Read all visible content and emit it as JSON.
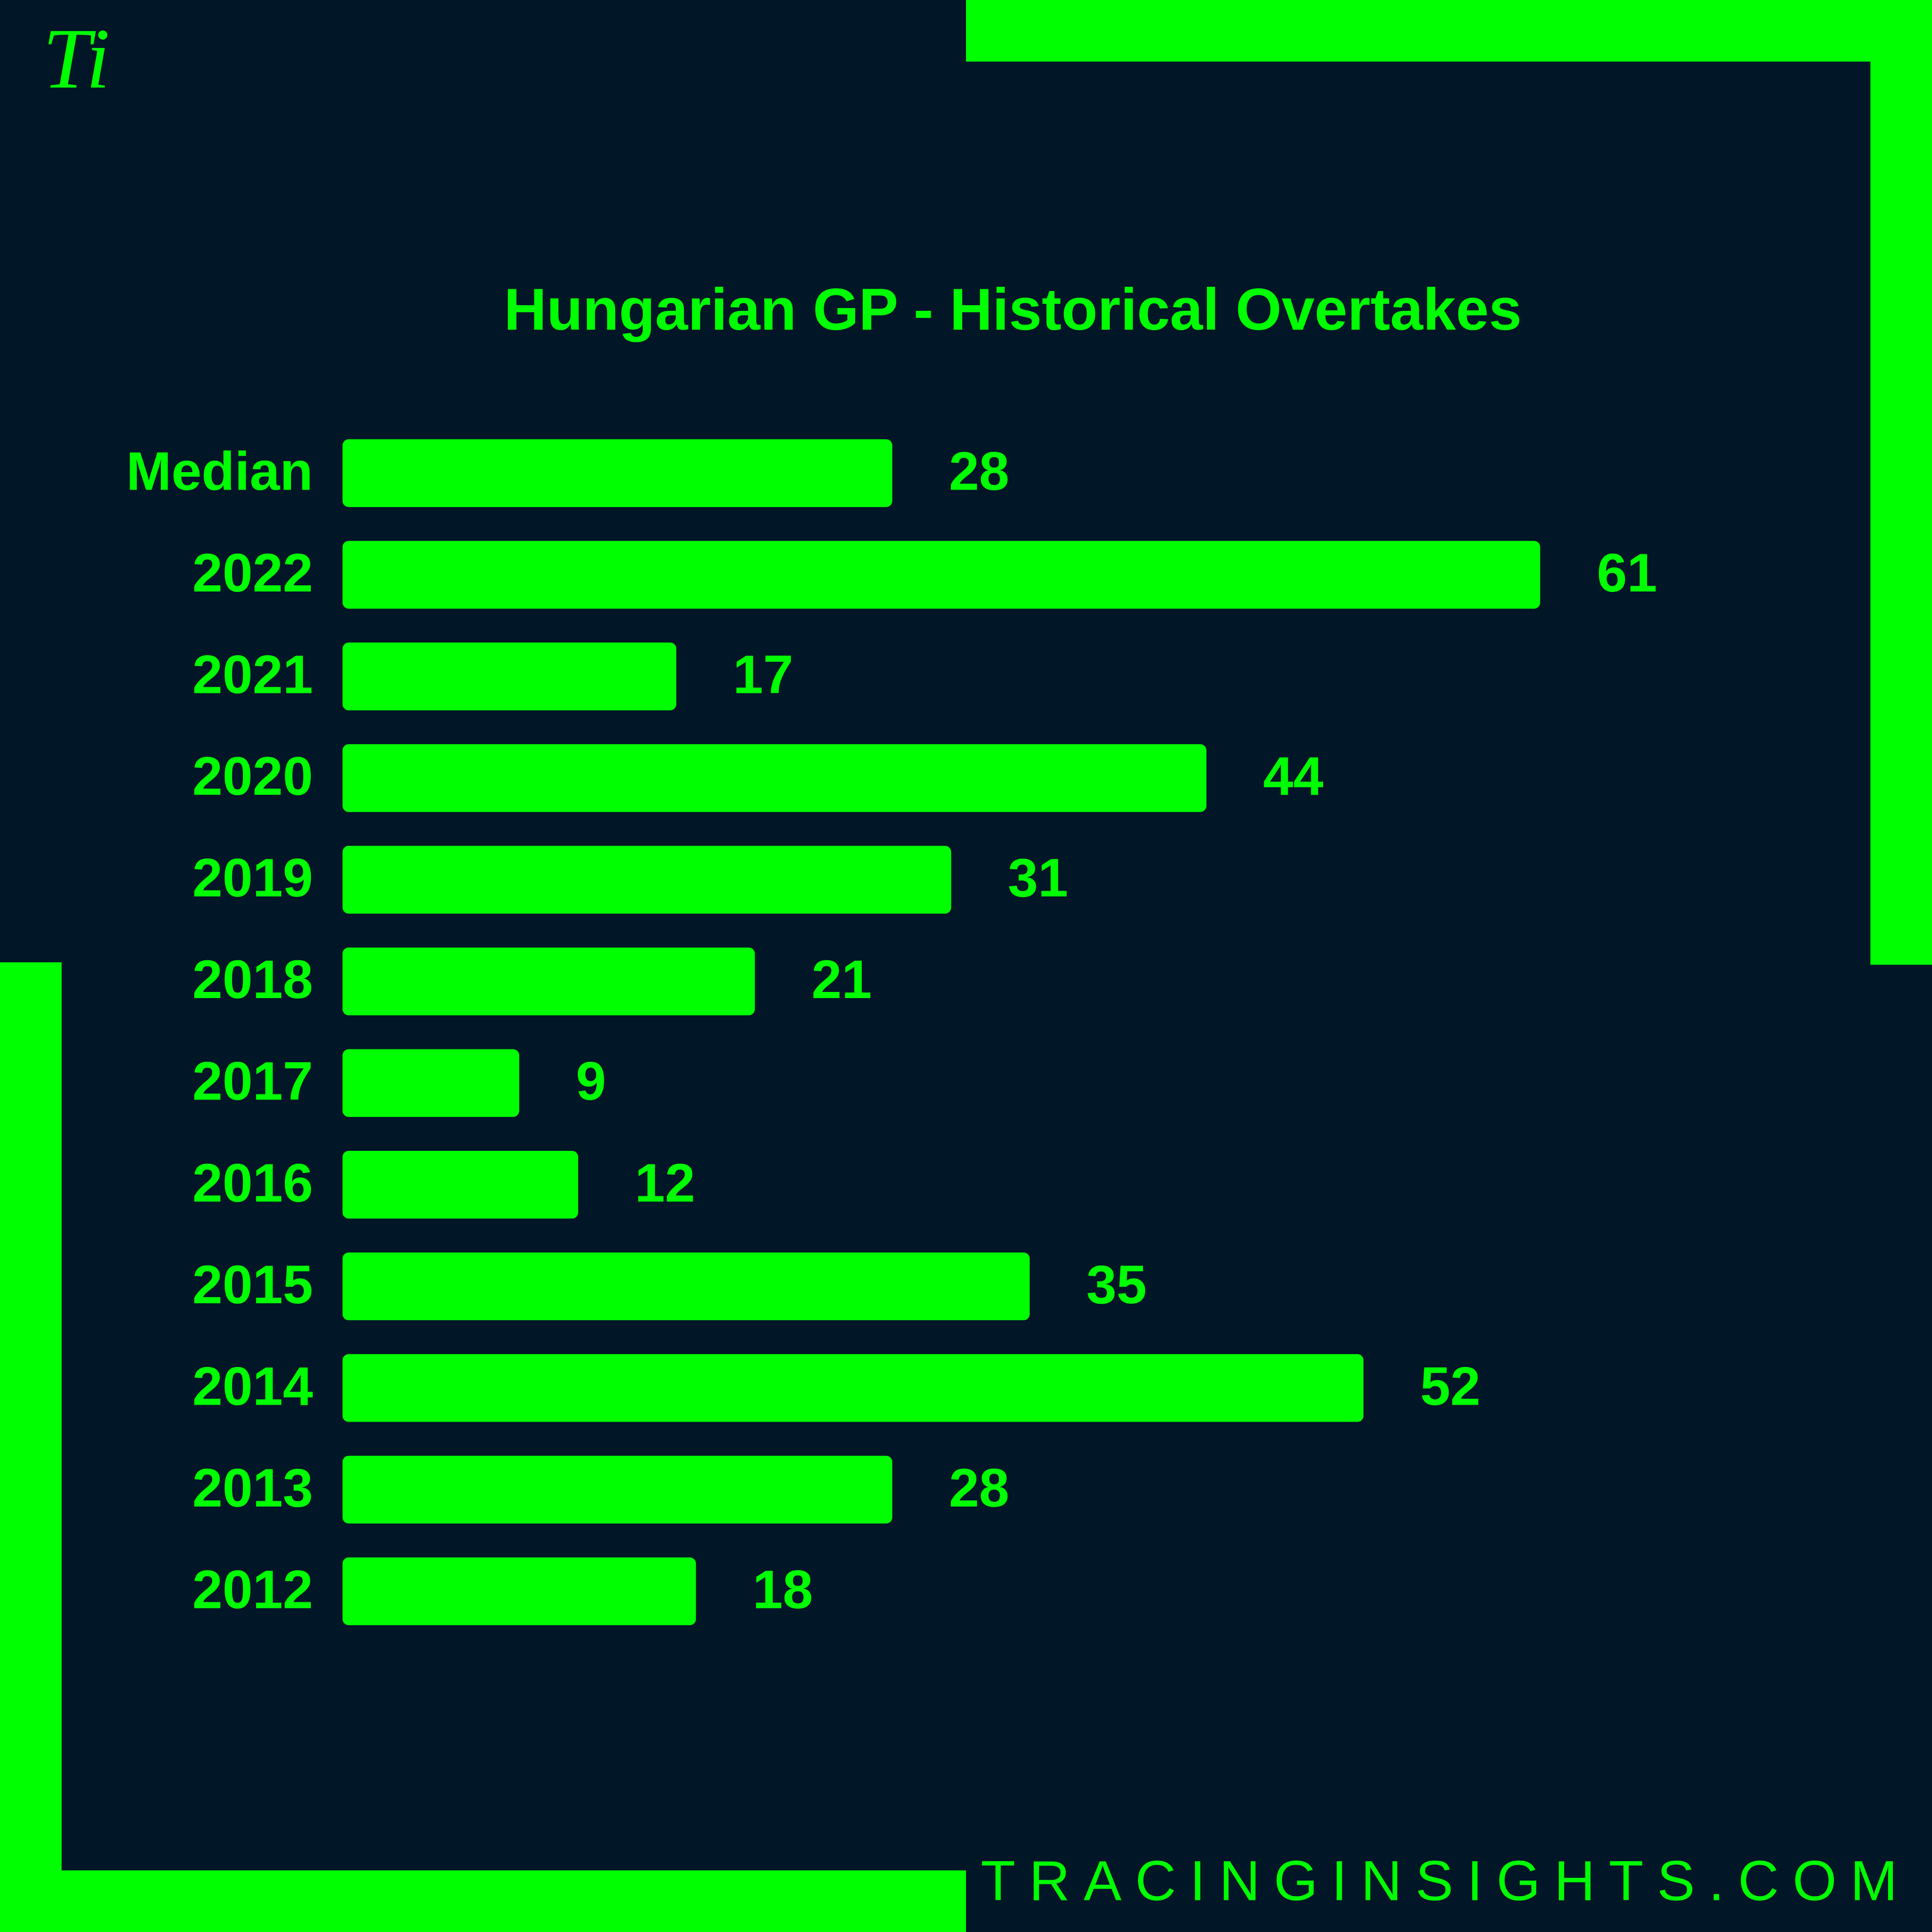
{
  "logo": "Ti",
  "footer": "TRACINGINSIGHTS.COM",
  "chart_data": {
    "type": "bar",
    "orientation": "horizontal",
    "title": "Hungarian GP - Historical Overtakes",
    "categories": [
      "Median",
      "2022",
      "2021",
      "2020",
      "2019",
      "2018",
      "2017",
      "2016",
      "2015",
      "2014",
      "2013",
      "2012"
    ],
    "values": [
      28,
      61,
      17,
      44,
      31,
      21,
      9,
      12,
      35,
      52,
      28,
      18
    ],
    "color": "#00ff00"
  }
}
